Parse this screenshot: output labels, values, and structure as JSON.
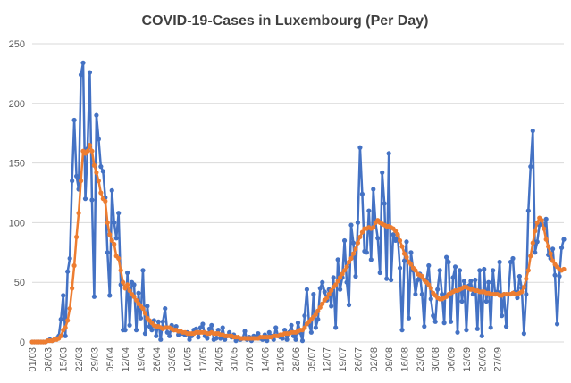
{
  "chart_data": {
    "type": "line",
    "title": "COVID-19-Cases in Luxembourg (Per Day)",
    "xlabel": "",
    "ylabel": "",
    "ylim": [
      0,
      250
    ],
    "yticks": [
      0,
      50,
      100,
      150,
      200,
      250
    ],
    "grid": true,
    "legend": "none",
    "x_tick_labels": [
      "01/03",
      "08/03",
      "15/03",
      "22/03",
      "29/03",
      "05/04",
      "12/04",
      "19/04",
      "26/04",
      "03/05",
      "10/05",
      "17/05",
      "24/05",
      "31/05",
      "07/06",
      "14/06",
      "21/06",
      "28/06",
      "05/07",
      "12/07",
      "19/07",
      "26/07",
      "02/08",
      "09/08",
      "16/08",
      "23/08",
      "30/08",
      "06/09",
      "13/09",
      "20/09",
      "27/09"
    ],
    "series": [
      {
        "color": "#4472C4",
        "marker": "circle",
        "values": [
          0,
          0,
          0,
          0,
          0,
          0,
          0,
          1,
          2,
          1,
          2,
          3,
          5,
          19,
          39,
          5,
          59,
          70,
          135,
          186,
          139,
          128,
          224,
          234,
          120,
          162,
          226,
          119,
          38,
          190,
          170,
          147,
          143,
          121,
          75,
          39,
          127,
          100,
          87,
          108,
          48,
          10,
          10,
          58,
          14,
          50,
          48,
          10,
          41,
          20,
          60,
          7,
          30,
          13,
          10,
          18,
          5,
          17,
          2,
          17,
          28,
          8,
          5,
          14,
          10,
          13,
          6,
          8,
          7,
          6,
          8,
          2,
          5,
          10,
          11,
          4,
          12,
          15,
          5,
          3,
          11,
          14,
          2,
          3,
          10,
          3,
          12,
          2,
          5,
          8,
          4,
          6,
          1,
          3,
          2,
          3,
          9,
          2,
          4,
          1,
          5,
          4,
          7,
          3,
          2,
          6,
          1,
          8,
          5,
          2,
          12,
          5,
          4,
          3,
          10,
          2,
          8,
          14,
          5,
          2,
          16,
          8,
          1,
          22,
          44,
          15,
          8,
          40,
          12,
          19,
          45,
          50,
          42,
          35,
          44,
          30,
          54,
          12,
          69,
          44,
          54,
          85,
          50,
          31,
          98,
          83,
          55,
          100,
          163,
          124,
          76,
          75,
          110,
          69,
          128,
          100,
          87,
          58,
          142,
          116,
          53,
          158,
          52,
          90,
          85,
          89,
          62,
          10,
          68,
          84,
          20,
          75,
          60,
          40,
          52,
          57,
          40,
          13,
          52,
          64,
          36,
          22,
          17,
          44,
          60,
          40,
          16,
          71,
          67,
          17,
          54,
          63,
          8,
          60,
          34,
          51,
          10,
          47,
          51,
          40,
          52,
          11,
          60,
          5,
          61,
          34,
          50,
          12,
          60,
          40,
          42,
          67,
          22,
          40,
          13,
          40,
          67,
          70,
          42,
          37,
          55,
          45,
          7,
          40,
          110,
          147,
          177,
          75,
          84,
          98,
          100,
          95,
          103,
          73,
          70,
          78,
          56,
          15,
          55,
          79,
          86
        ]
      },
      {
        "color": "#ED7D31",
        "marker": "circle",
        "values": [
          0,
          0,
          0,
          0,
          0,
          0,
          0,
          1,
          1,
          1,
          2,
          2,
          3,
          5,
          10,
          12,
          18,
          28,
          45,
          64,
          88,
          108,
          135,
          160,
          158,
          160,
          165,
          160,
          148,
          142,
          135,
          125,
          120,
          118,
          100,
          90,
          85,
          82,
          72,
          70,
          60,
          50,
          45,
          48,
          43,
          40,
          38,
          35,
          32,
          30,
          28,
          24,
          20,
          18,
          16,
          14,
          13,
          13,
          12,
          11,
          12,
          12,
          12,
          11,
          10,
          10,
          9,
          9,
          8,
          8,
          7,
          7,
          7,
          7,
          8,
          8,
          8,
          8,
          8,
          7,
          7,
          8,
          7,
          7,
          7,
          6,
          6,
          5,
          5,
          5,
          5,
          4,
          4,
          4,
          3,
          3,
          3,
          3,
          3,
          3,
          3,
          3,
          3,
          4,
          4,
          4,
          4,
          4,
          4,
          5,
          5,
          5,
          6,
          6,
          7,
          7,
          7,
          8,
          8,
          8,
          9,
          10,
          10,
          12,
          15,
          17,
          19,
          21,
          23,
          26,
          29,
          32,
          35,
          37,
          40,
          43,
          46,
          48,
          51,
          54,
          57,
          60,
          63,
          67,
          70,
          74,
          78,
          83,
          88,
          92,
          95,
          95,
          96,
          95,
          96,
          100,
          102,
          100,
          99,
          98,
          97,
          97,
          96,
          95,
          93,
          90,
          85,
          80,
          74,
          71,
          67,
          65,
          62,
          60,
          57,
          56,
          55,
          52,
          50,
          48,
          45,
          41,
          39,
          37,
          36,
          36,
          37,
          38,
          40,
          41,
          42,
          43,
          43,
          44,
          45,
          46,
          46,
          45,
          44,
          44,
          43,
          43,
          42,
          42,
          42,
          41,
          41,
          40,
          40,
          40,
          40,
          39,
          39,
          40,
          40,
          40,
          40,
          41,
          40,
          40,
          41,
          42,
          46,
          53,
          60,
          72,
          83,
          93,
          100,
          104,
          102,
          95,
          86,
          80,
          74,
          68,
          65,
          63,
          61,
          60,
          61
        ]
      }
    ]
  }
}
